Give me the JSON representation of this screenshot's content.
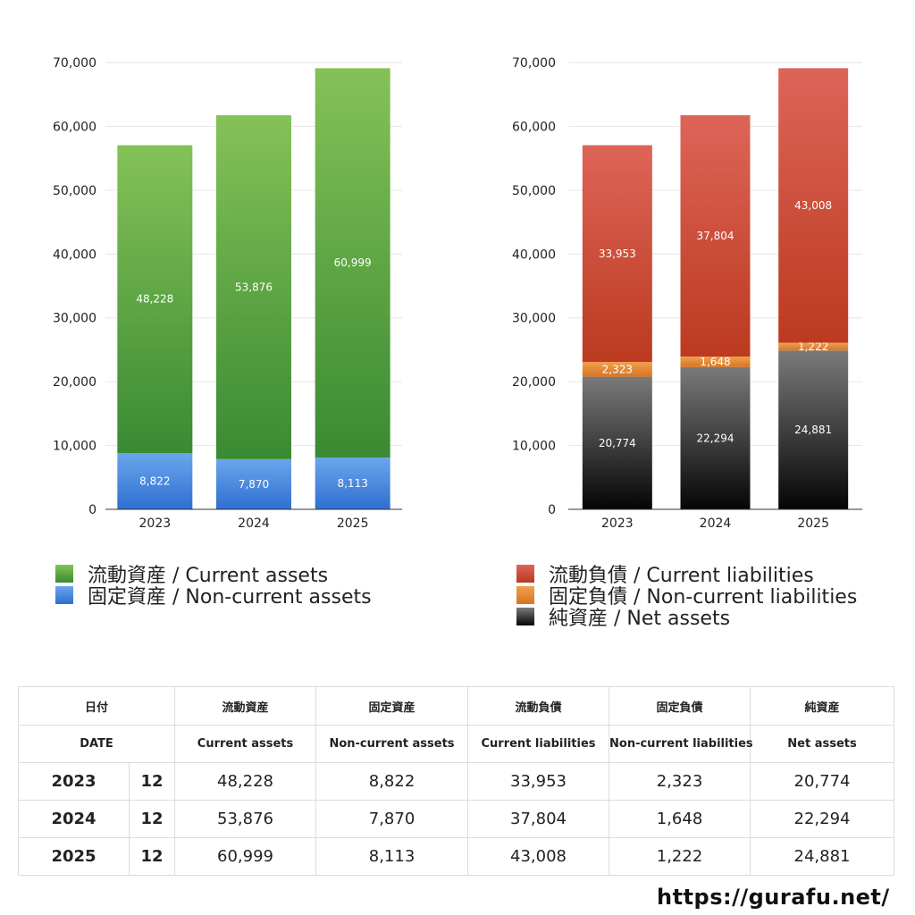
{
  "chart_data": [
    {
      "type": "bar",
      "stacked": true,
      "categories": [
        "2023",
        "2024",
        "2025"
      ],
      "ylim": [
        0,
        70000
      ],
      "yticks": [
        "0",
        "10,000",
        "20,000",
        "30,000",
        "40,000",
        "50,000",
        "60,000",
        "70,000"
      ],
      "grid": true,
      "series": [
        {
          "name": "固定資産 / Non-current assets",
          "values": [
            8822,
            7870,
            8113
          ],
          "labels": [
            "8,822",
            "7,870",
            "8,113"
          ],
          "color_top": "#6aa6ec",
          "color_bottom": "#2f6fd0"
        },
        {
          "name": "流動資産 / Current assets",
          "values": [
            48228,
            53876,
            60999
          ],
          "labels": [
            "48,228",
            "53,876",
            "60,999"
          ],
          "color_top": "#84c257",
          "color_bottom": "#3a8a33"
        }
      ]
    },
    {
      "type": "bar",
      "stacked": true,
      "categories": [
        "2023",
        "2024",
        "2025"
      ],
      "ylim": [
        0,
        70000
      ],
      "yticks": [
        "0",
        "10,000",
        "20,000",
        "30,000",
        "40,000",
        "50,000",
        "60,000",
        "70,000"
      ],
      "grid": true,
      "series": [
        {
          "name": "純資産 / Net assets",
          "values": [
            20774,
            22294,
            24881
          ],
          "labels": [
            "20,774",
            "22,294",
            "24,881"
          ],
          "color_top": "#7a7a7a",
          "color_bottom": "#050505"
        },
        {
          "name": "固定負債 / Non-current liabilities",
          "values": [
            2323,
            1648,
            1222
          ],
          "labels": [
            "2,323",
            "1,648",
            "1,222"
          ],
          "color_top": "#f0a050",
          "color_bottom": "#d87522"
        },
        {
          "name": "流動負債 / Current liabilities",
          "values": [
            33953,
            37804,
            43008
          ],
          "labels": [
            "33,953",
            "37,804",
            "43,008"
          ],
          "color_top": "#dd6558",
          "color_bottom": "#bb3a20"
        }
      ]
    }
  ],
  "legend_left": [
    {
      "label": "流動資産 / Current assets",
      "color_top": "#84c257",
      "color_bottom": "#3a8a33"
    },
    {
      "label": "固定資産 / Non-current assets",
      "color_top": "#6aa6ec",
      "color_bottom": "#2f6fd0"
    }
  ],
  "legend_right": [
    {
      "label": "流動負債 / Current liabilities",
      "color_top": "#dd6558",
      "color_bottom": "#bb3a20"
    },
    {
      "label": "固定負債 / Non-current liabilities",
      "color_top": "#f0a050",
      "color_bottom": "#d87522"
    },
    {
      "label": "純資産 / Net assets",
      "color_top": "#7a7a7a",
      "color_bottom": "#050505"
    }
  ],
  "table": {
    "header_ja": {
      "date": "日付",
      "c1": "流動資産",
      "c2": "固定資産",
      "c3": "流動負債",
      "c4": "固定負債",
      "c5": "純資産"
    },
    "header_en": {
      "date": "DATE",
      "c1": "Current assets",
      "c2": "Non-current assets",
      "c3": "Current liabilities",
      "c4": "Non-current liabilities",
      "c5": "Net assets"
    },
    "rows": [
      {
        "year": "2023",
        "month": "12",
        "c1": "48,228",
        "c2": "8,822",
        "c3": "33,953",
        "c4": "2,323",
        "c5": "20,774"
      },
      {
        "year": "2024",
        "month": "12",
        "c1": "53,876",
        "c2": "7,870",
        "c3": "37,804",
        "c4": "1,648",
        "c5": "22,294"
      },
      {
        "year": "2025",
        "month": "12",
        "c1": "60,999",
        "c2": "8,113",
        "c3": "43,008",
        "c4": "1,222",
        "c5": "24,881"
      }
    ]
  },
  "footer": {
    "url": "https://gurafu.net/"
  }
}
